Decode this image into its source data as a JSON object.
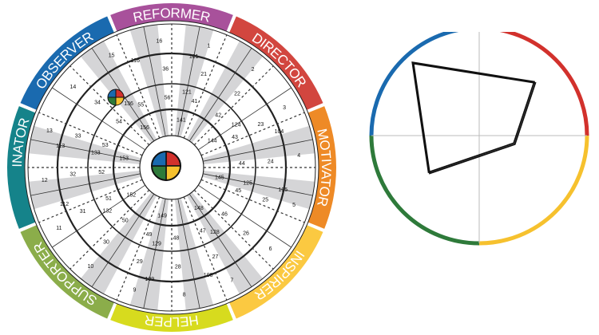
{
  "segments": [
    {
      "label": "REFORMER",
      "color": "#A8519B"
    },
    {
      "label": "DIRECTOR",
      "color": "#D2463F"
    },
    {
      "label": "MOTIVATOR",
      "color": "#EE8A26"
    },
    {
      "label": "INSPIRER",
      "color": "#FBC941"
    },
    {
      "label": "HELPER",
      "color": "#D7DB1E"
    },
    {
      "label": "SUPPORTER",
      "color": "#8BAD4A"
    },
    {
      "label": "COORDINATOR",
      "color": "#15838A"
    },
    {
      "label": "OBSERVER",
      "color": "#1A6AAF"
    }
  ],
  "quadrant_colors": [
    "#D2312C",
    "#F6C12E",
    "#2E7A3A",
    "#1A6AAF"
  ],
  "gray_band_color": "#D5D5D7",
  "wheel_numbers": {
    "outer": [
      "1",
      "2",
      "3",
      "4",
      "5",
      "6",
      "7",
      "8",
      "9",
      "10",
      "11",
      "12",
      "13",
      "14",
      "15",
      "16"
    ],
    "outer_shaded": [
      "101",
      "",
      "104",
      "105",
      "",
      "108",
      "109",
      "",
      "112",
      "113",
      "",
      "116"
    ],
    "middle": [
      "21",
      "22",
      "23",
      "24",
      "25",
      "26",
      "27",
      "28",
      "29",
      "30",
      "31",
      "32",
      "33",
      "34",
      "",
      "36"
    ],
    "middle_shaded": [
      "121",
      "124",
      "125",
      "128",
      "129",
      "132",
      "133",
      "136"
    ],
    "inner": [
      "41",
      "42",
      "43",
      "44",
      "45",
      "46",
      "47",
      "48",
      "49",
      "50",
      "51",
      "52",
      "53",
      "54",
      "55",
      "56"
    ],
    "inner_shaded": [
      "141",
      "144",
      "145",
      "148",
      "149",
      "152",
      "153",
      "156"
    ]
  },
  "radar_data": {
    "type": "radar",
    "axes": [
      "top",
      "right",
      "bottom",
      "left"
    ],
    "quadrant_colors": [
      "#D2312C",
      "#F6C12E",
      "#2E7A3A",
      "#1A6AAF"
    ],
    "polygon": [
      [
        -0.62,
        0.68
      ],
      [
        0.51,
        0.5
      ],
      [
        0.32,
        -0.07
      ],
      [
        -0.47,
        -0.34
      ]
    ]
  }
}
